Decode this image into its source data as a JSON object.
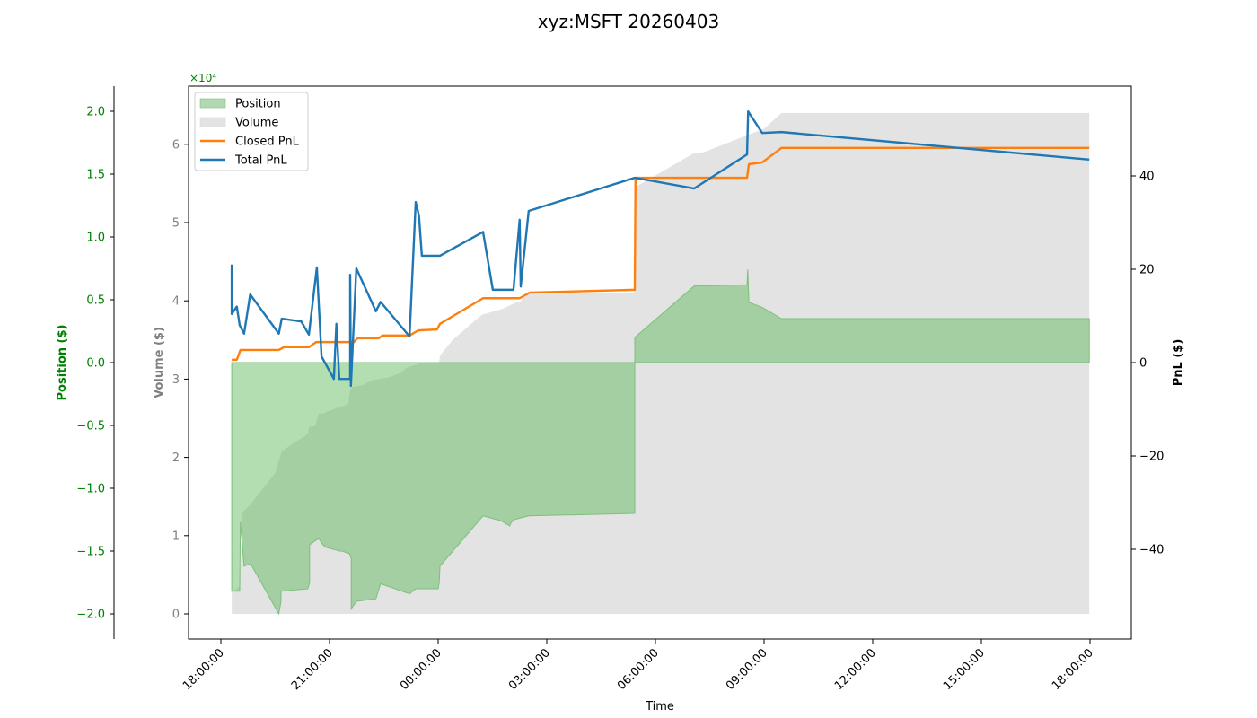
{
  "title": "xyz:MSFT 20260403",
  "colors": {
    "position_fill": "#b1d8b0",
    "position_edge": "#7dbf7b",
    "volume_fill": "#e3e3e3",
    "overlap_fill": "#a0c69f",
    "closed_pnl": "#ff7f0e",
    "total_pnl": "#1f77b4",
    "position_axis": "#008000",
    "volume_axis": "#808080",
    "pnl_axis": "#000000"
  },
  "chart_data": {
    "type": "line",
    "title": "xyz:MSFT 20260403",
    "xlabel": "Time",
    "x_unit": "hours since 18:00:00",
    "x_ticks": [
      "18:00:00",
      "21:00:00",
      "00:00:00",
      "03:00:00",
      "06:00:00",
      "09:00:00",
      "12:00:00",
      "15:00:00",
      "18:00:00"
    ],
    "x_range": [
      -0.9,
      25.2
    ],
    "axes": {
      "position": {
        "label": "Position ($)",
        "multiplier": "×10⁴",
        "ticks": [
          "2.0",
          "1.5",
          "1.0",
          "0.5",
          "0.0",
          "−0.5",
          "−1.0",
          "−1.5",
          "−2.0"
        ],
        "tick_values": [
          2.0,
          1.5,
          1.0,
          0.5,
          0.0,
          -0.5,
          -1.0,
          -1.5,
          -2.0
        ],
        "range": [
          -2.2,
          2.2
        ]
      },
      "volume": {
        "label": "Volume ($)",
        "ticks": [
          "6",
          "5",
          "4",
          "3",
          "2",
          "1",
          "0"
        ],
        "tick_values": [
          6,
          5,
          4,
          3,
          2,
          1,
          0
        ],
        "range": [
          -0.32,
          6.4
        ]
      },
      "pnl": {
        "label": "PnL ($)",
        "ticks": [
          "40",
          "20",
          "0",
          "−20",
          "−40"
        ],
        "tick_values": [
          40,
          20,
          0,
          -20,
          -40
        ],
        "range": [
          -59,
          59.5
        ]
      }
    },
    "legend": {
      "position": "upper left",
      "entries": [
        {
          "label": "Position",
          "kind": "patch",
          "color": "#b1d8b0"
        },
        {
          "label": "Volume",
          "kind": "patch",
          "color": "#e3e3e3"
        },
        {
          "label": "Closed PnL",
          "kind": "line",
          "color": "#ff7f0e"
        },
        {
          "label": "Total PnL",
          "kind": "line",
          "color": "#1f77b4"
        }
      ]
    },
    "series": [
      {
        "name": "Total PnL",
        "axis": "pnl",
        "x": [
          0.3,
          0.3,
          0.44,
          0.52,
          0.64,
          0.81,
          1.6,
          1.68,
          2.22,
          2.43,
          2.65,
          2.78,
          3.12,
          3.19,
          3.27,
          3.57,
          3.57,
          3.59,
          3.74,
          4.28,
          4.41,
          5.21,
          5.38,
          5.47,
          5.55,
          6.05,
          7.24,
          7.51,
          8.08,
          8.25,
          8.28,
          8.5,
          11.43,
          13.07,
          14.53,
          14.56,
          14.95,
          15.48,
          23.98
        ],
        "y": [
          21.0,
          10.4,
          12.0,
          8.0,
          6.2,
          14.6,
          6.2,
          9.4,
          8.8,
          6.0,
          20.4,
          1.3,
          -3.5,
          8.3,
          -3.5,
          -3.5,
          18.8,
          -5.0,
          20.2,
          11.0,
          13.0,
          5.6,
          34.4,
          31.5,
          22.9,
          22.9,
          28.0,
          15.6,
          15.6,
          30.6,
          16.3,
          32.5,
          39.6,
          37.3,
          44.6,
          53.8,
          49.2,
          49.4,
          43.5
        ]
      },
      {
        "name": "Closed PnL",
        "axis": "pnl",
        "x": [
          0.3,
          0.44,
          0.54,
          1.6,
          1.74,
          2.43,
          2.63,
          3.67,
          3.77,
          4.36,
          4.46,
          5.21,
          5.45,
          5.97,
          6.05,
          7.24,
          8.25,
          8.53,
          11.43,
          11.45,
          14.53,
          14.58,
          14.95,
          15.48,
          23.98
        ],
        "y": [
          0.6,
          0.6,
          2.7,
          2.7,
          3.3,
          3.3,
          4.4,
          4.4,
          5.2,
          5.2,
          5.8,
          5.8,
          6.9,
          7.1,
          8.3,
          13.8,
          13.8,
          15.0,
          15.6,
          39.6,
          39.6,
          42.5,
          42.9,
          46.0,
          46.0
        ]
      },
      {
        "name": "Volume",
        "axis": "volume",
        "kind": "area",
        "x": [
          0.3,
          0.35,
          0.52,
          0.6,
          0.82,
          1.5,
          1.68,
          2.4,
          2.44,
          2.6,
          2.7,
          2.82,
          3.02,
          3.2,
          3.52,
          3.56,
          3.62,
          3.9,
          4.19,
          4.34,
          4.62,
          4.98,
          5.11,
          5.36,
          5.48,
          6.03,
          6.05,
          6.4,
          7.2,
          7.8,
          8.1,
          8.3,
          8.35,
          8.6,
          11.41,
          11.43,
          13.04,
          13.34,
          15.0,
          15.48,
          23.98
        ],
        "y": [
          0.3,
          0.3,
          0.35,
          1.3,
          1.4,
          1.8,
          2.08,
          2.3,
          2.39,
          2.4,
          2.56,
          2.56,
          2.6,
          2.63,
          2.68,
          2.84,
          2.9,
          2.92,
          2.99,
          3.0,
          3.02,
          3.08,
          3.14,
          3.18,
          3.2,
          3.22,
          3.3,
          3.5,
          3.82,
          3.9,
          3.97,
          4.0,
          4.08,
          4.09,
          4.1,
          5.45,
          5.88,
          5.9,
          6.2,
          6.4,
          6.4
        ]
      },
      {
        "name": "Position",
        "axis": "position",
        "kind": "area",
        "x": [
          0.3,
          0.3,
          0.52,
          0.54,
          0.64,
          0.82,
          1.6,
          1.66,
          1.66,
          2.4,
          2.45,
          2.45,
          2.7,
          2.82,
          2.9,
          3.29,
          3.34,
          3.55,
          3.6,
          3.6,
          3.74,
          4.28,
          4.41,
          5.21,
          5.3,
          5.38,
          5.55,
          5.85,
          6.0,
          6.03,
          6.05,
          7.24,
          7.75,
          7.98,
          8.0,
          8.09,
          8.5,
          11.43,
          11.43,
          11.43,
          13.07,
          14.53,
          14.55,
          14.58,
          14.95,
          15.48,
          23.98,
          23.98
        ],
        "y": [
          0.0,
          -1.82,
          -1.82,
          -1.27,
          -1.62,
          -1.6,
          -2.0,
          -1.9,
          -1.82,
          -1.8,
          -1.75,
          -1.45,
          -1.4,
          -1.45,
          -1.47,
          -1.5,
          -1.5,
          -1.52,
          -1.56,
          -1.96,
          -1.9,
          -1.88,
          -1.76,
          -1.84,
          -1.82,
          -1.8,
          -1.8,
          -1.8,
          -1.8,
          -1.75,
          -1.62,
          -1.22,
          -1.26,
          -1.3,
          -1.28,
          -1.25,
          -1.22,
          -1.2,
          0.0,
          0.2,
          0.61,
          0.62,
          0.74,
          0.48,
          0.44,
          0.35,
          0.35,
          0.0
        ]
      }
    ]
  }
}
